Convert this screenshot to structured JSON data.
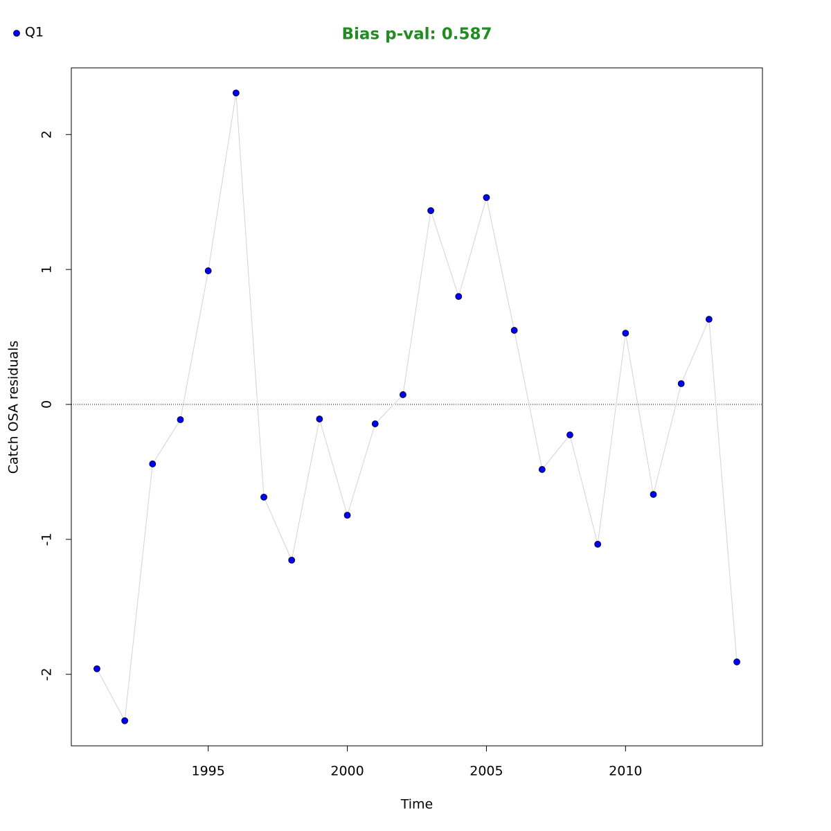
{
  "chart_data": {
    "type": "line",
    "title": "Bias p-val: 0.587",
    "x_label": "Time",
    "y_label": "Catch OSA residuals",
    "x": [
      1991,
      1992,
      1993,
      1994,
      1995,
      1996,
      1997,
      1998,
      1999,
      2000,
      2001,
      2002,
      2003,
      2004,
      2005,
      2006,
      2007,
      2008,
      2009,
      2010,
      2011,
      2012,
      2013,
      2014
    ],
    "series": [
      {
        "name": "Q1",
        "color": "#0000ff",
        "line_color": "#d3d3d3",
        "values": [
          -1.959,
          -2.344,
          -0.441,
          -0.113,
          0.99,
          2.308,
          -0.687,
          -1.154,
          -0.108,
          -0.821,
          -0.144,
          0.072,
          1.436,
          0.8,
          1.533,
          0.549,
          -0.482,
          -0.226,
          -1.036,
          0.528,
          -0.667,
          0.154,
          0.631,
          -1.908
        ]
      }
    ],
    "xlim": [
      1990.08,
      2014.92
    ],
    "ylim": [
      -2.53,
      2.494
    ],
    "xticks": [
      1995,
      2000,
      2005,
      2010
    ],
    "yticks": [
      -2,
      -1,
      0,
      1,
      2
    ],
    "hline": 0,
    "legend": "top-left"
  }
}
